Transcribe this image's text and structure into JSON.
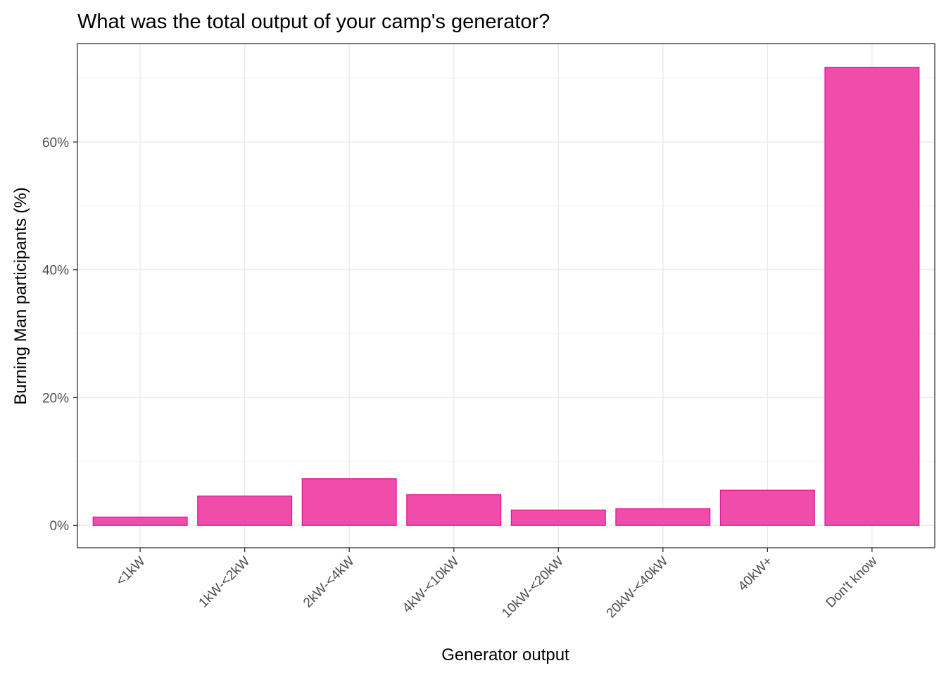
{
  "chart_data": {
    "type": "bar",
    "title": "What was the total output of your camp's generator?",
    "xlabel": "Generator output",
    "ylabel": "Burning Man participants (%)",
    "categories": [
      "<1kW",
      "1kW-<2kW",
      "2kW-<4kW",
      "4kW-<10kW",
      "10kW-<20kW",
      "20kW-<40kW",
      "40kW+",
      "Don't know"
    ],
    "values": [
      1.3,
      4.6,
      7.3,
      4.8,
      2.4,
      2.6,
      5.5,
      71.7
    ],
    "ylim": [
      -3.5,
      75.4
    ],
    "yticks": [
      0,
      20,
      40,
      60
    ],
    "ytick_labels": [
      "0%",
      "20%",
      "40%",
      "60%"
    ],
    "grid": true,
    "bar_fill": "#ef3ea3",
    "bar_stroke": "#e0179a"
  }
}
